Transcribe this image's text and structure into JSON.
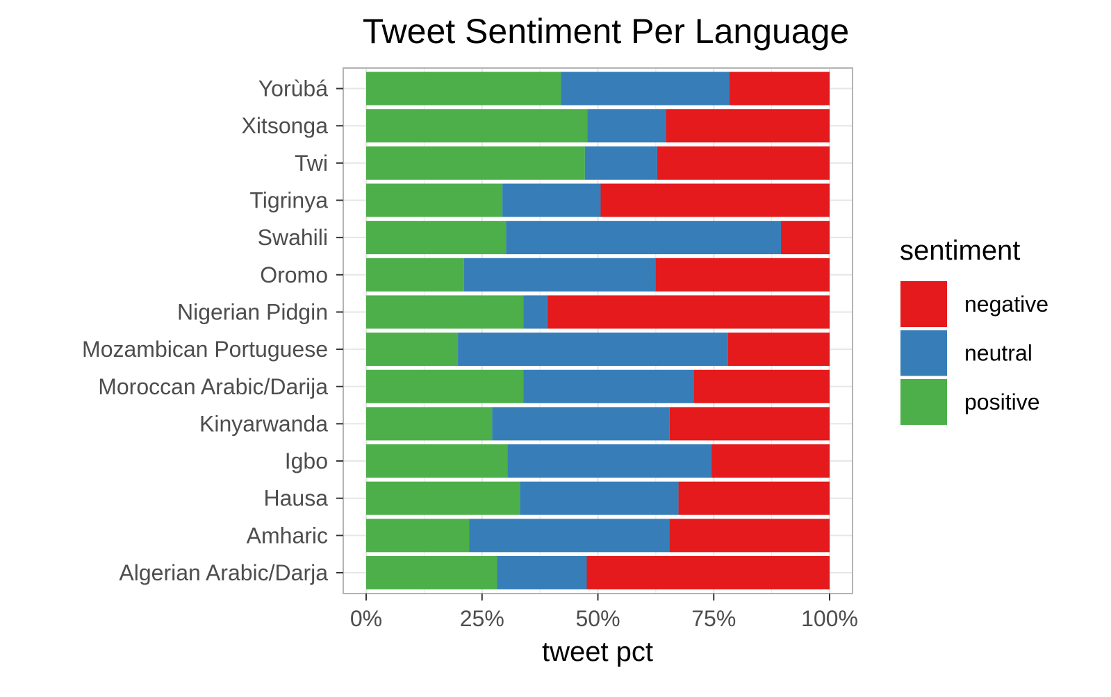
{
  "chart_data": {
    "type": "bar",
    "orientation": "horizontal",
    "stacked": true,
    "title": "Tweet Sentiment Per Language",
    "xlabel": "tweet pct",
    "ylabel": "",
    "xlim": [
      0,
      1
    ],
    "x_ticks": [
      "0%",
      "25%",
      "50%",
      "75%",
      "100%"
    ],
    "categories": [
      "Algerian Arabic/Darja",
      "Amharic",
      "Hausa",
      "Igbo",
      "Kinyarwanda",
      "Moroccan Arabic/Darija",
      "Mozambican Portuguese",
      "Nigerian Pidgin",
      "Oromo",
      "Swahili",
      "Tigrinya",
      "Twi",
      "Xitsonga",
      "Yorùbá"
    ],
    "series": [
      {
        "name": "positive",
        "color": "#4daf4a",
        "values": [
          0.282,
          0.222,
          0.332,
          0.305,
          0.272,
          0.339,
          0.198,
          0.339,
          0.211,
          0.302,
          0.294,
          0.472,
          0.477,
          0.42
        ]
      },
      {
        "name": "neutral",
        "color": "#377eb8",
        "values": [
          0.194,
          0.432,
          0.342,
          0.44,
          0.383,
          0.368,
          0.583,
          0.052,
          0.413,
          0.593,
          0.212,
          0.156,
          0.17,
          0.363
        ]
      },
      {
        "name": "negative",
        "color": "#e41a1c",
        "values": [
          0.524,
          0.346,
          0.326,
          0.255,
          0.345,
          0.293,
          0.219,
          0.609,
          0.376,
          0.105,
          0.494,
          0.372,
          0.353,
          0.217
        ]
      }
    ],
    "stack_order": [
      "positive",
      "neutral",
      "negative"
    ],
    "legend": {
      "title": "sentiment",
      "position": "right",
      "items": [
        "negative",
        "neutral",
        "positive"
      ]
    },
    "grid": true
  }
}
